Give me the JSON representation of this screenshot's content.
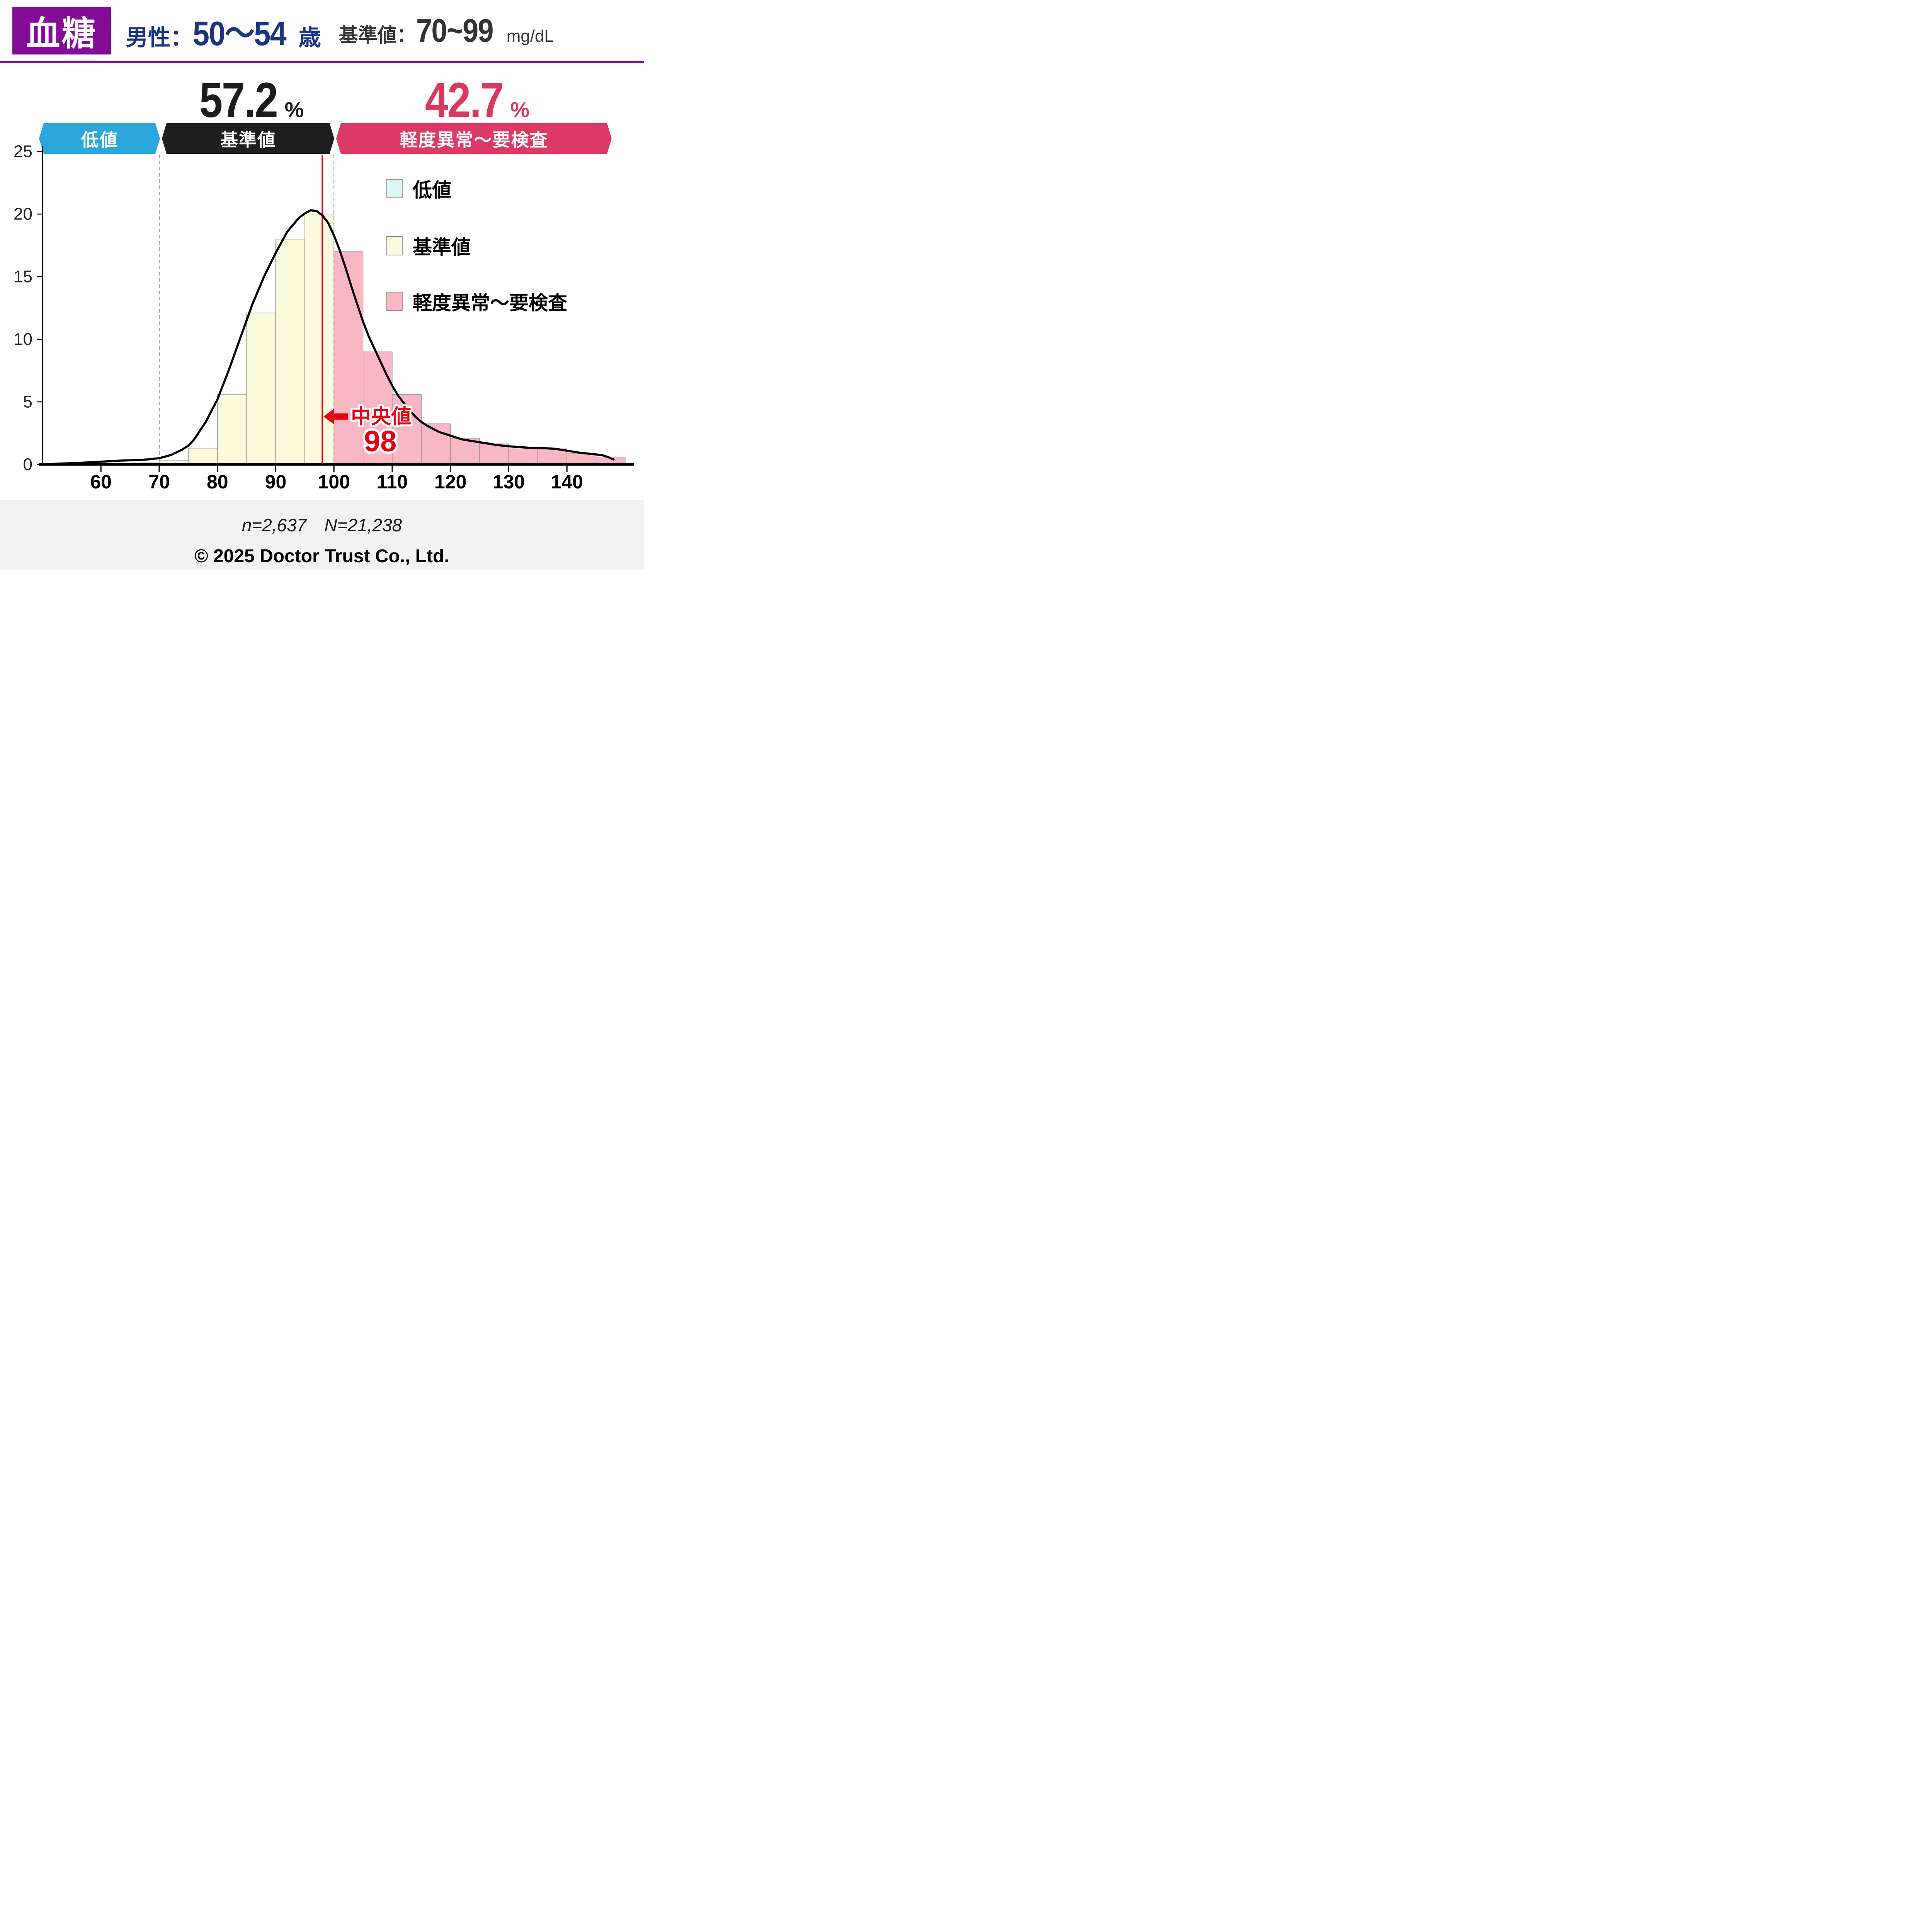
{
  "header": {
    "title": "血糖",
    "group_label": "男性：",
    "group_value": "50～54",
    "group_suffix": "歳",
    "ref_label": "基準値：",
    "ref_value": "70~99",
    "ref_unit": "mg/dL"
  },
  "percentages": {
    "normal": {
      "value": "57.2",
      "unit": "%"
    },
    "abnormal": {
      "value": "42.7",
      "unit": "%"
    }
  },
  "banners": {
    "low": {
      "label": "低値",
      "color": "#2ba7dc"
    },
    "normal": {
      "label": "基準値",
      "color": "#1e1e1e"
    },
    "abnormal": {
      "label": "軽度異常～要検査",
      "color": "#dc3a64"
    }
  },
  "legend": [
    {
      "label": "低値",
      "fill": "#def5f8"
    },
    {
      "label": "基準値",
      "fill": "#fcfadc"
    },
    {
      "label": "軽度異常～要検査",
      "fill": "#f9b7c3"
    }
  ],
  "footer": {
    "sample": "n=2,637",
    "population": "N=21,238",
    "copyright": "© 2025 Doctor Trust Co., Ltd."
  },
  "chart_data": {
    "type": "histogram",
    "title": "血糖 男性 50～54歳 分布",
    "xlim": [
      50,
      152
    ],
    "ylim": [
      0,
      25
    ],
    "xticks": [
      60,
      70,
      80,
      90,
      100,
      110,
      120,
      130,
      140
    ],
    "yticks": [
      0,
      5,
      10,
      15,
      20,
      25
    ],
    "bin_width": 5,
    "bins": [
      {
        "x0": 65,
        "x1": 70,
        "h": 0.12,
        "cat": "low"
      },
      {
        "x0": 70,
        "x1": 75,
        "h": 0.3,
        "cat": "normal"
      },
      {
        "x0": 75,
        "x1": 80,
        "h": 1.3,
        "cat": "normal"
      },
      {
        "x0": 80,
        "x1": 85,
        "h": 5.6,
        "cat": "normal"
      },
      {
        "x0": 85,
        "x1": 90,
        "h": 12.1,
        "cat": "normal"
      },
      {
        "x0": 90,
        "x1": 95,
        "h": 18.0,
        "cat": "normal"
      },
      {
        "x0": 95,
        "x1": 100,
        "h": 20.0,
        "cat": "normal"
      },
      {
        "x0": 100,
        "x1": 105,
        "h": 17.0,
        "cat": "abnormal"
      },
      {
        "x0": 105,
        "x1": 110,
        "h": 9.0,
        "cat": "abnormal"
      },
      {
        "x0": 110,
        "x1": 115,
        "h": 5.6,
        "cat": "abnormal"
      },
      {
        "x0": 115,
        "x1": 120,
        "h": 3.25,
        "cat": "abnormal"
      },
      {
        "x0": 120,
        "x1": 125,
        "h": 2.1,
        "cat": "abnormal"
      },
      {
        "x0": 125,
        "x1": 130,
        "h": 1.65,
        "cat": "abnormal"
      },
      {
        "x0": 130,
        "x1": 135,
        "h": 1.25,
        "cat": "abnormal"
      },
      {
        "x0": 135,
        "x1": 140,
        "h": 1.25,
        "cat": "abnormal"
      },
      {
        "x0": 140,
        "x1": 145,
        "h": 0.9,
        "cat": "abnormal"
      },
      {
        "x0": 145,
        "x1": 150,
        "h": 0.6,
        "cat": "abnormal"
      }
    ],
    "categories": {
      "low": {
        "label": "低値",
        "fill": "#def5f8"
      },
      "normal": {
        "label": "基準値",
        "fill": "#fcfadc"
      },
      "abnormal": {
        "label": "軽度異常～要検査",
        "fill": "#f9b7c3"
      }
    },
    "curve": [
      [
        52,
        0.05
      ],
      [
        56,
        0.12
      ],
      [
        60,
        0.22
      ],
      [
        63,
        0.3
      ],
      [
        66,
        0.35
      ],
      [
        68,
        0.4
      ],
      [
        70,
        0.5
      ],
      [
        72,
        0.75
      ],
      [
        74,
        1.2
      ],
      [
        75,
        1.5
      ],
      [
        76,
        2.0
      ],
      [
        78,
        3.4
      ],
      [
        80,
        5.2
      ],
      [
        82,
        7.6
      ],
      [
        84,
        10.2
      ],
      [
        86,
        12.8
      ],
      [
        88,
        15.0
      ],
      [
        90,
        16.9
      ],
      [
        92,
        18.6
      ],
      [
        94,
        19.7
      ],
      [
        95,
        20.05
      ],
      [
        96,
        20.3
      ],
      [
        97,
        20.25
      ],
      [
        98,
        19.9
      ],
      [
        99,
        19.3
      ],
      [
        100,
        18.3
      ],
      [
        101,
        17.1
      ],
      [
        102,
        15.7
      ],
      [
        103,
        14.2
      ],
      [
        104,
        12.8
      ],
      [
        105,
        11.4
      ],
      [
        106,
        10.2
      ],
      [
        107,
        9.2
      ],
      [
        108,
        8.2
      ],
      [
        109,
        7.2
      ],
      [
        110,
        6.3
      ],
      [
        111,
        5.5
      ],
      [
        112,
        4.9
      ],
      [
        113,
        4.3
      ],
      [
        114,
        3.8
      ],
      [
        115,
        3.4
      ],
      [
        116,
        3.1
      ],
      [
        117,
        2.85
      ],
      [
        118,
        2.6
      ],
      [
        119,
        2.45
      ],
      [
        120,
        2.3
      ],
      [
        122,
        2.0
      ],
      [
        124,
        1.85
      ],
      [
        126,
        1.7
      ],
      [
        128,
        1.55
      ],
      [
        130,
        1.45
      ],
      [
        132,
        1.38
      ],
      [
        134,
        1.32
      ],
      [
        136,
        1.3
      ],
      [
        138,
        1.25
      ],
      [
        140,
        1.1
      ],
      [
        142,
        0.95
      ],
      [
        144,
        0.85
      ],
      [
        146,
        0.75
      ],
      [
        147,
        0.6
      ],
      [
        148,
        0.4
      ]
    ],
    "reference_lines": [
      {
        "x": 70,
        "style": "dashed"
      },
      {
        "x": 100,
        "style": "dashed"
      }
    ],
    "median": {
      "x": 98,
      "arrow": "←",
      "label": "中央値",
      "value": "98"
    },
    "grid": false,
    "legend_position": "upper-right"
  }
}
